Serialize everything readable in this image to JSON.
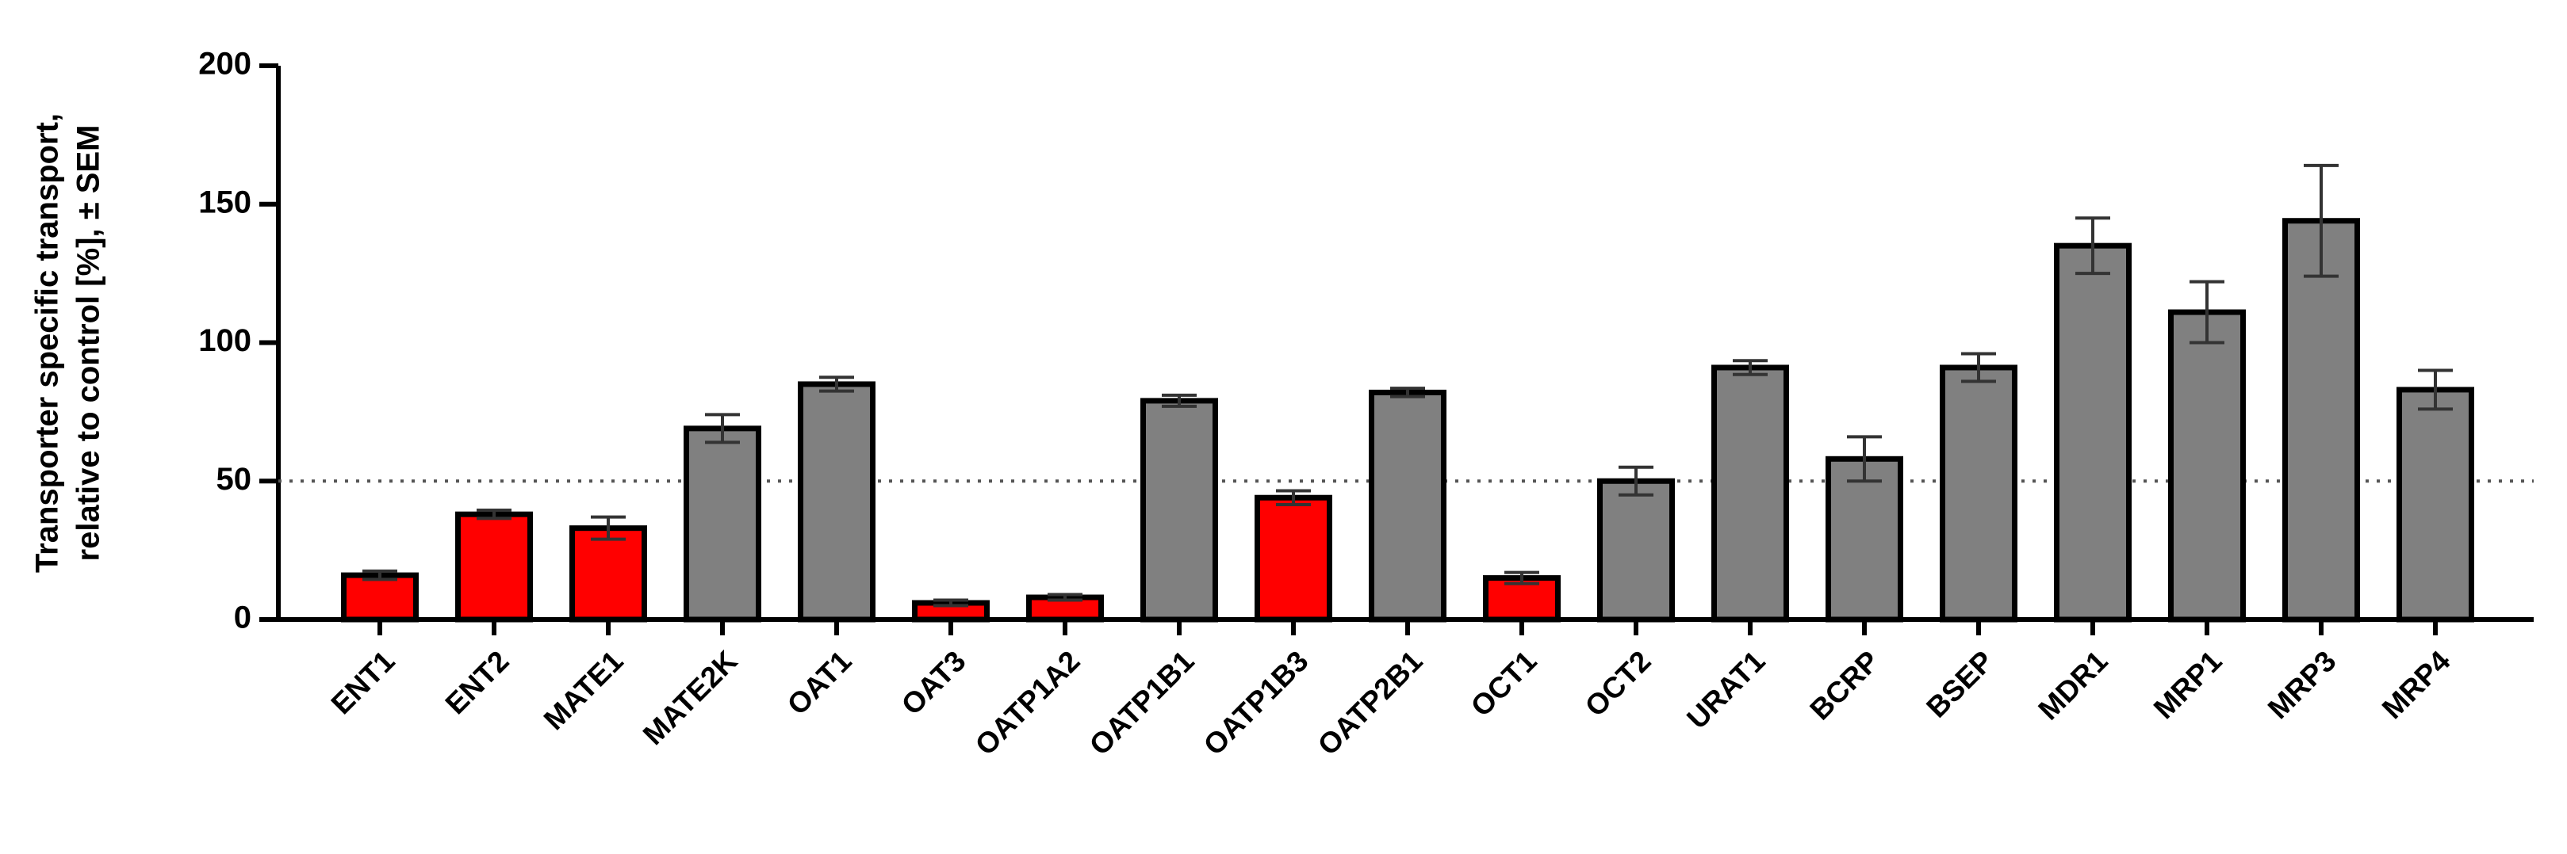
{
  "chart_data": {
    "type": "bar",
    "y_label": [
      "Transporter specific transport,",
      "relative to control [%], ± SEM"
    ],
    "categories": [
      "ENT1",
      "ENT2",
      "MATE1",
      "MATE2K",
      "OAT1",
      "OAT3",
      "OATP1A2",
      "OATP1B1",
      "OATP1B3",
      "OATP2B1",
      "OCT1",
      "OCT2",
      "URAT1",
      "BCRP",
      "BSEP",
      "MDR1",
      "MRP1",
      "MRP3",
      "MRP4"
    ],
    "values": [
      16,
      38,
      33,
      69,
      85,
      6,
      8,
      79,
      44,
      82,
      15,
      50,
      91,
      58,
      91,
      135,
      111,
      144,
      83
    ],
    "errors": [
      1.5,
      1.5,
      4,
      5,
      2.5,
      1,
      1,
      2,
      2.5,
      1.5,
      2,
      5,
      2.5,
      8,
      5,
      10,
      11,
      20,
      7
    ],
    "colors": [
      "#ff0000",
      "#ff0000",
      "#ff0000",
      "#808080",
      "#808080",
      "#ff0000",
      "#ff0000",
      "#808080",
      "#ff0000",
      "#808080",
      "#ff0000",
      "#808080",
      "#808080",
      "#808080",
      "#808080",
      "#808080",
      "#808080",
      "#808080",
      "#808080"
    ],
    "reference_line": 50,
    "ylim": [
      0,
      200
    ],
    "yticks": [
      0,
      50,
      100,
      150,
      200
    ]
  }
}
